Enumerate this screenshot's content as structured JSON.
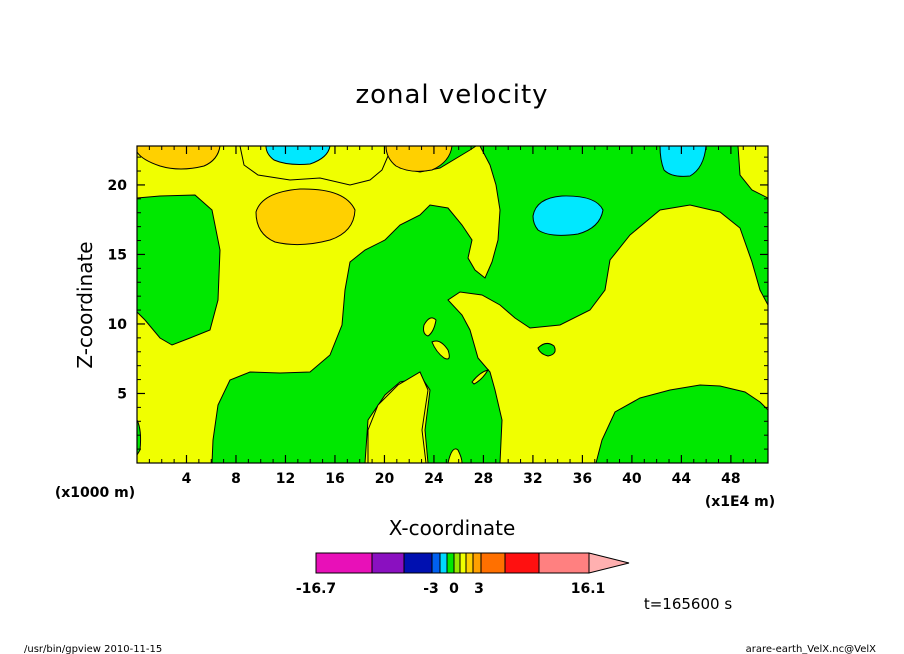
{
  "chart_data": {
    "type": "heatmap",
    "title": "zonal velocity",
    "xlabel": "X-coordinate",
    "ylabel": "Z-coordinate",
    "x_scale_note": "(x1E4 m)",
    "y_scale_note": "(x1000 m)",
    "xlim": [
      0,
      51
    ],
    "ylim": [
      0,
      22.8
    ],
    "x_ticks": [
      4,
      8,
      12,
      16,
      20,
      24,
      28,
      32,
      36,
      40,
      44,
      48
    ],
    "y_ticks": [
      5,
      10,
      15,
      20
    ],
    "time_label": "t=165600 s",
    "colorbar": {
      "min_label": "-16.7",
      "max_label": "16.1",
      "tick_labels": [
        "-16.7",
        "-3",
        "0",
        "3",
        "16.1"
      ],
      "colors": [
        "#e810b8",
        "#8a10c0",
        "#0010b0",
        "#0060f0",
        "#00d8ff",
        "#00e800",
        "#98e800",
        "#f0ff00",
        "#ffd000",
        "#ffa000",
        "#ff7000",
        "#ff1010",
        "#ff8080",
        "#ffb0b0"
      ]
    },
    "contour_fills": {
      "background": "#f0ff00",
      "positive_weak": "#f0ff00",
      "positive_mid": "#ffd000",
      "negative_weak": "#00e800",
      "negative_mid": "#00e8ff"
    }
  },
  "footer": {
    "left": "/usr/bin/gpview   2010-11-15",
    "right": "arare-earth_VelX.nc@VelX"
  }
}
